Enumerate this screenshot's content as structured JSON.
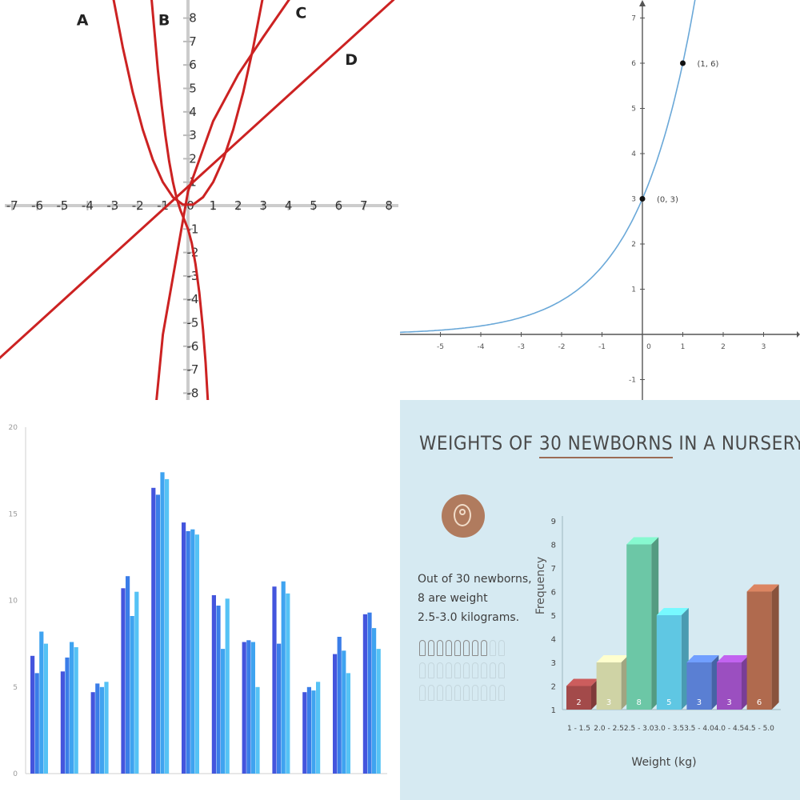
{
  "chart_data": [
    {
      "type": "line",
      "panel": "top-left",
      "title": "",
      "xlabel": "",
      "ylabel": "",
      "xlim": [
        -7.5,
        8.3
      ],
      "ylim": [
        -8.4,
        8.4
      ],
      "grid": false,
      "x_ticks": [
        "-7",
        "-6",
        "-5",
        "-4",
        "-3",
        "-2",
        "-1",
        "0",
        "1",
        "2",
        "3",
        "4",
        "5",
        "6",
        "7",
        "8"
      ],
      "y_ticks": [
        "8",
        "7",
        "6",
        "5",
        "4",
        "3",
        "2",
        "1",
        "-1",
        "-2",
        "-3",
        "-4",
        "-5",
        "-6",
        "-7",
        "-8"
      ],
      "curve_color": "#cc2222",
      "series": [
        {
          "name": "A",
          "label_pos": [
            -4.2,
            7.7
          ],
          "x": [
            -3.0,
            -2.6,
            -2.2,
            -1.8,
            -1.4,
            -1.0,
            -0.6,
            -0.2,
            0.2,
            0.6,
            1.0,
            1.4,
            1.8,
            2.2,
            2.6,
            3.0
          ],
          "y": [
            9.0,
            6.76,
            4.84,
            3.24,
            1.96,
            1.0,
            0.36,
            0.04,
            0.04,
            0.36,
            1.0,
            1.96,
            3.24,
            4.84,
            6.76,
            9.0
          ]
        },
        {
          "name": "B",
          "label_pos": [
            -0.95,
            7.7
          ],
          "x": [
            -1.45,
            -1.35,
            -1.2,
            -1.05,
            -0.9,
            -0.75,
            -0.6,
            -0.45,
            -0.3,
            -0.15,
            0.0,
            0.15,
            0.3,
            0.45,
            0.6,
            0.7,
            0.8
          ],
          "y": [
            8.8,
            7.6,
            5.8,
            4.3,
            3.0,
            1.9,
            1.0,
            0.3,
            -0.2,
            -0.6,
            -1.0,
            -1.6,
            -2.5,
            -3.7,
            -5.3,
            -6.7,
            -8.5
          ]
        },
        {
          "name": "C",
          "label_pos": [
            4.5,
            8.0
          ],
          "x": [
            -1.3,
            -1.0,
            0.0,
            1.0,
            2.0,
            3.0,
            4.1
          ],
          "y": [
            -8.8,
            -5.5,
            0.6,
            3.6,
            5.6,
            7.2,
            8.9
          ]
        },
        {
          "name": "D",
          "label_pos": [
            6.5,
            6.0
          ],
          "x": [
            -7.6,
            8.2
          ],
          "y": [
            -6.6,
            8.8
          ]
        }
      ]
    },
    {
      "type": "line",
      "panel": "top-right",
      "title": "",
      "xlabel": "",
      "ylabel": "",
      "function": "y = 3 * 2^x",
      "xlim": [
        -6,
        3.8
      ],
      "ylim": [
        -1.3,
        7.3
      ],
      "x_ticks": [
        "-5",
        "-4",
        "-3",
        "-2",
        "-1",
        "0",
        "1",
        "2",
        "3"
      ],
      "y_ticks": [
        "-1",
        "0",
        "1",
        "2",
        "3",
        "4",
        "5",
        "6",
        "7"
      ],
      "curve_color": "#6aa8d8",
      "points": [
        {
          "x": 0,
          "y": 3,
          "label": "(0, 3)"
        },
        {
          "x": 1,
          "y": 6,
          "label": "(1, 6)"
        }
      ]
    },
    {
      "type": "bar",
      "panel": "bottom-left",
      "title": "",
      "xlabel": "",
      "ylabel": "",
      "ylim": [
        0,
        20
      ],
      "y_ticks": [
        "0",
        "5",
        "10",
        "15",
        "20"
      ],
      "grid": false,
      "legend": "none",
      "colors": [
        "#4455dd",
        "#3a7de8",
        "#3fa3f0",
        "#55c2f5"
      ],
      "groups": [
        [
          6.8,
          5.8,
          8.2,
          7.5
        ],
        [
          5.9,
          6.7,
          7.6,
          7.3
        ],
        [
          4.7,
          5.2,
          5.0,
          5.3
        ],
        [
          10.7,
          11.4,
          9.1,
          10.5
        ],
        [
          16.5,
          16.1,
          17.4,
          17.0
        ],
        [
          14.5,
          14.0,
          14.1,
          13.8
        ],
        [
          10.3,
          9.7,
          7.2,
          10.1
        ],
        [
          7.6,
          7.7,
          7.6,
          5.0
        ],
        [
          10.8,
          7.5,
          11.1,
          10.4
        ],
        [
          4.7,
          5.0,
          4.8,
          5.3
        ],
        [
          6.9,
          7.9,
          7.1,
          5.8
        ],
        [
          9.2,
          9.3,
          8.4,
          7.2
        ]
      ]
    },
    {
      "type": "bar",
      "panel": "bottom-right",
      "title": "WEIGHTS OF 30 NEWBORNS IN A NURSERY",
      "title_highlight": "30 NEWBORNS",
      "title_prefix": "WEIGHTS OF ",
      "title_suffix": " IN A NURSERY",
      "xlabel": "Weight (kg)",
      "ylabel": "Frequency",
      "ylim": [
        1,
        9
      ],
      "y_ticks": [
        "1",
        "2",
        "3",
        "4",
        "5",
        "6",
        "7",
        "8",
        "9"
      ],
      "categories": [
        "1 - 1.5",
        "2.0 - 2.5",
        "2.5 - 3.0",
        "3.0 - 3.5",
        "3.5 - 4.0",
        "4.0 - 4.5",
        "4.5 - 5.0"
      ],
      "values": [
        2,
        3,
        8,
        5,
        3,
        3,
        6
      ],
      "colors": [
        "#a34a4a",
        "#cfd3a5",
        "#6cc7a6",
        "#5fc7e3",
        "#5a7fd3",
        "#9b4fc0",
        "#b06a4e"
      ],
      "note_lines": [
        "Out of 30 newborns,",
        "8 are weight",
        "2.5-3.0 kilograms."
      ],
      "background": "#d6eaf2"
    }
  ]
}
